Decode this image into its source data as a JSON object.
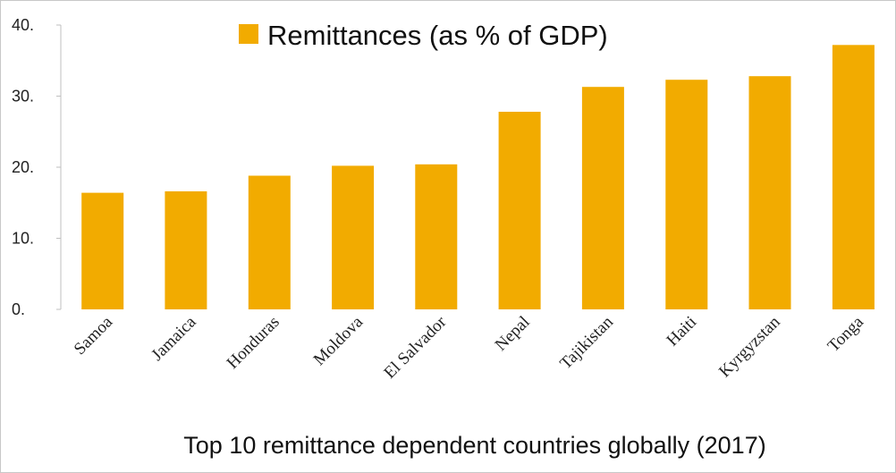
{
  "chart_data": {
    "type": "bar",
    "title": "",
    "caption": "Top 10 remittance dependent countries globally (2017)",
    "categories": [
      "Samoa",
      "Jamaica",
      "Honduras",
      "Moldova",
      "El Salvador",
      "Nepal",
      "Tajikistan",
      "Haiti",
      "Kyrgyzstan",
      "Tonga"
    ],
    "series": [
      {
        "name": "Remittances (as % of GDP)",
        "color": "#F2AB00",
        "values": [
          16.4,
          16.6,
          18.8,
          20.2,
          20.4,
          27.8,
          31.3,
          32.3,
          32.8,
          37.2
        ]
      }
    ],
    "ylim": [
      0,
      40
    ],
    "yticks": [
      0,
      10,
      20,
      30,
      40
    ],
    "ytick_labels": [
      "0.",
      "10.",
      "20.",
      "30.",
      "40."
    ],
    "xlabel": "",
    "ylabel": "",
    "grid": false,
    "legend": "top-center"
  }
}
